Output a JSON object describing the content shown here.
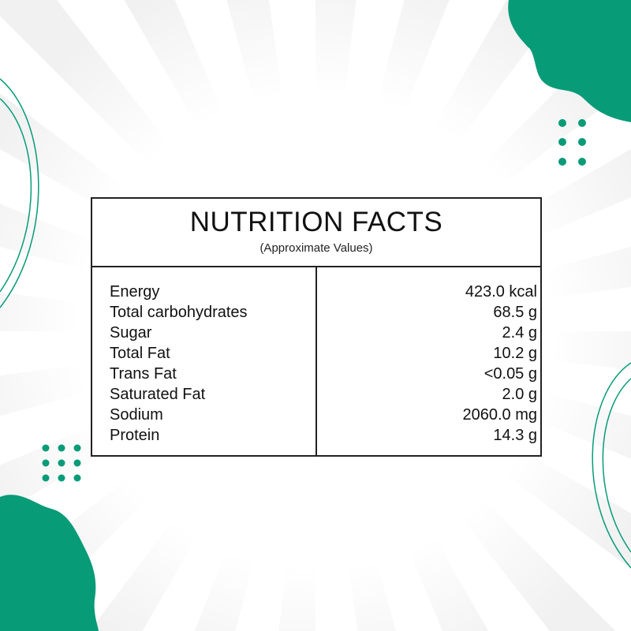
{
  "colors": {
    "accent": "#079b78",
    "ink": "#111111"
  },
  "panel": {
    "title": "NUTRITION FACTS",
    "subtitle": "(Approximate Values)",
    "rows": [
      {
        "name": "Energy",
        "value": "423.0 kcal"
      },
      {
        "name": "Total carbohydrates",
        "value": "68.5 g"
      },
      {
        "name": "Sugar",
        "value": "2.4 g"
      },
      {
        "name": "Total Fat",
        "value": "10.2 g"
      },
      {
        "name": "Trans Fat",
        "value": "<0.05 g"
      },
      {
        "name": "Saturated Fat",
        "value": "2.0 g"
      },
      {
        "name": "Sodium",
        "value": "2060.0 mg"
      },
      {
        "name": "Protein",
        "value": "14.3 g"
      }
    ]
  }
}
